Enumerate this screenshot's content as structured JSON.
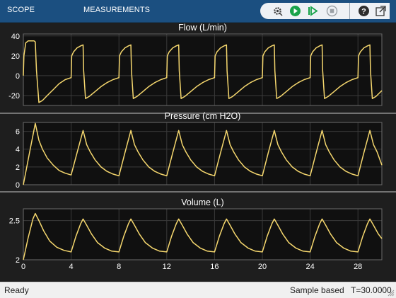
{
  "toolbar": {
    "tabs": [
      {
        "label": "SCOPE"
      },
      {
        "label": "MEASUREMENTS"
      }
    ],
    "icons": [
      "settings-gear-icon",
      "run-icon",
      "step-forward-icon",
      "stop-icon",
      "help-icon",
      "undock-icon"
    ],
    "colors": {
      "bar": "#1b4f80",
      "run": "#18a34a",
      "stop": "#9aa0a6"
    }
  },
  "status": {
    "text": "Ready",
    "mode": "Sample based",
    "time": "T=30.0000"
  },
  "colors": {
    "background": "#1e1e1e",
    "axes": "#101010",
    "grid": "#3a3a3a",
    "axis_text": "#ffffff",
    "trace": "#f5d76e"
  },
  "chart_data": [
    {
      "type": "line",
      "title": "Flow (L/min)",
      "xlim": [
        0,
        30
      ],
      "ylim": [
        -30,
        42
      ],
      "yticks": [
        40,
        20,
        0,
        -20
      ],
      "ytick_labels": [
        "40",
        "20",
        "0",
        "-20"
      ],
      "series": [
        {
          "x": [
            0,
            0.05,
            0.2,
            0.4,
            0.6,
            0.9,
            1.0,
            1.1,
            1.3,
            1.6,
            2.0,
            2.5,
            3.0,
            3.5,
            4.0,
            4.05,
            4.2,
            4.5,
            4.8,
            5.0,
            5.05,
            5.2,
            5.5,
            6.0,
            6.5,
            7.0,
            7.5,
            8.0,
            8.05,
            8.2,
            8.5,
            8.8,
            9.0,
            9.05,
            9.2,
            9.5,
            10.0,
            10.5,
            11.0,
            11.5,
            12.0,
            12.05,
            12.2,
            12.5,
            12.8,
            13.0,
            13.05,
            13.2,
            13.5,
            14.0,
            14.5,
            15.0,
            15.5,
            16.0,
            16.05,
            16.2,
            16.5,
            16.8,
            17.0,
            17.05,
            17.2,
            17.5,
            18.0,
            18.5,
            19.0,
            19.5,
            20.0,
            20.05,
            20.2,
            20.5,
            20.8,
            21.0,
            21.05,
            21.2,
            21.5,
            22.0,
            22.5,
            23.0,
            23.5,
            24.0,
            24.05,
            24.2,
            24.5,
            24.8,
            25.0,
            25.05,
            25.2,
            25.5,
            26.0,
            26.5,
            27.0,
            27.5,
            28.0,
            28.05,
            28.2,
            28.5,
            28.8,
            29.0,
            29.05,
            29.2,
            29.5,
            30.0
          ],
          "y": [
            0,
            20,
            33,
            35,
            35,
            35,
            34,
            5,
            -27,
            -25,
            -20,
            -14,
            -8,
            -4,
            -2,
            20,
            24,
            28,
            30,
            31,
            5,
            -23,
            -21,
            -16,
            -11,
            -7,
            -4,
            -2,
            20,
            24,
            28,
            30,
            31,
            5,
            -23,
            -21,
            -16,
            -11,
            -7,
            -4,
            -2,
            20,
            24,
            28,
            30,
            31,
            5,
            -23,
            -21,
            -16,
            -11,
            -7,
            -4,
            -2,
            20,
            24,
            28,
            30,
            31,
            5,
            -23,
            -21,
            -16,
            -11,
            -7,
            -4,
            -2,
            20,
            24,
            28,
            30,
            31,
            5,
            -23,
            -21,
            -16,
            -11,
            -7,
            -4,
            -2,
            20,
            24,
            28,
            30,
            31,
            5,
            -23,
            -21,
            -16,
            -11,
            -7,
            -4,
            -2,
            20,
            24,
            28,
            30,
            31,
            5,
            -23,
            -21,
            -15
          ]
        }
      ]
    },
    {
      "type": "line",
      "title": "Pressure (cm H2O)",
      "xlim": [
        0,
        30
      ],
      "ylim": [
        0,
        7
      ],
      "yticks": [
        6,
        4,
        2,
        0
      ],
      "ytick_labels": [
        "6",
        "4",
        "2",
        "0"
      ],
      "series": [
        {
          "x": [
            0,
            0.5,
            1.0,
            1.3,
            1.6,
            2.0,
            2.5,
            3.0,
            3.5,
            4.0,
            4.5,
            5.0,
            5.3,
            5.6,
            6.0,
            6.5,
            7.0,
            7.5,
            8.0,
            8.5,
            9.0,
            9.3,
            9.6,
            10.0,
            10.5,
            11.0,
            11.5,
            12.0,
            12.5,
            13.0,
            13.3,
            13.6,
            14.0,
            14.5,
            15.0,
            15.5,
            16.0,
            16.5,
            17.0,
            17.3,
            17.6,
            18.0,
            18.5,
            19.0,
            19.5,
            20.0,
            20.5,
            21.0,
            21.3,
            21.6,
            22.0,
            22.5,
            23.0,
            23.5,
            24.0,
            24.5,
            25.0,
            25.3,
            25.6,
            26.0,
            26.5,
            27.0,
            27.5,
            28.0,
            28.5,
            29.0,
            29.3,
            29.6,
            30.0
          ],
          "y": [
            0,
            3.5,
            6.9,
            5.0,
            4.0,
            3.0,
            2.2,
            1.6,
            1.3,
            1.1,
            3.6,
            6.1,
            4.5,
            3.7,
            2.8,
            2.0,
            1.5,
            1.2,
            1.0,
            3.6,
            6.1,
            4.5,
            3.7,
            2.8,
            2.0,
            1.5,
            1.2,
            1.0,
            3.6,
            6.1,
            4.5,
            3.7,
            2.8,
            2.0,
            1.5,
            1.2,
            1.0,
            3.6,
            6.1,
            4.5,
            3.7,
            2.8,
            2.0,
            1.5,
            1.2,
            1.0,
            3.6,
            6.1,
            4.5,
            3.7,
            2.8,
            2.0,
            1.5,
            1.2,
            1.0,
            3.6,
            6.1,
            4.5,
            3.7,
            2.8,
            2.0,
            1.5,
            1.2,
            1.0,
            3.6,
            6.1,
            4.5,
            3.7,
            2.2
          ]
        }
      ]
    },
    {
      "type": "line",
      "title": "Volume (L)",
      "xlim": [
        0,
        30
      ],
      "ylim": [
        2,
        2.65
      ],
      "yticks": [
        2.5,
        2
      ],
      "ytick_labels": [
        "2.5",
        "2"
      ],
      "xticks": [
        0,
        4,
        8,
        12,
        16,
        20,
        24,
        28
      ],
      "xtick_labels": [
        "0",
        "4",
        "8",
        "12",
        "16",
        "20",
        "24",
        "28"
      ],
      "series": [
        {
          "x": [
            0,
            0.4,
            0.8,
            1.0,
            1.3,
            1.7,
            2.2,
            2.8,
            3.4,
            4.0,
            4.4,
            4.8,
            5.0,
            5.3,
            5.7,
            6.2,
            6.8,
            7.4,
            8.0,
            8.4,
            8.8,
            9.0,
            9.3,
            9.7,
            10.2,
            10.8,
            11.4,
            12.0,
            12.4,
            12.8,
            13.0,
            13.3,
            13.7,
            14.2,
            14.8,
            15.4,
            16.0,
            16.4,
            16.8,
            17.0,
            17.3,
            17.7,
            18.2,
            18.8,
            19.4,
            20.0,
            20.4,
            20.8,
            21.0,
            21.3,
            21.7,
            22.2,
            22.8,
            23.4,
            24.0,
            24.4,
            24.8,
            25.0,
            25.3,
            25.7,
            26.2,
            26.8,
            27.4,
            28.0,
            28.4,
            28.8,
            29.0,
            29.3,
            29.7,
            30.0
          ],
          "y": [
            2.0,
            2.28,
            2.52,
            2.59,
            2.5,
            2.37,
            2.24,
            2.16,
            2.12,
            2.1,
            2.3,
            2.46,
            2.52,
            2.44,
            2.33,
            2.22,
            2.15,
            2.11,
            2.1,
            2.3,
            2.46,
            2.52,
            2.44,
            2.33,
            2.22,
            2.15,
            2.11,
            2.1,
            2.3,
            2.46,
            2.52,
            2.44,
            2.33,
            2.22,
            2.15,
            2.11,
            2.1,
            2.3,
            2.46,
            2.52,
            2.44,
            2.33,
            2.22,
            2.15,
            2.11,
            2.1,
            2.3,
            2.46,
            2.52,
            2.44,
            2.33,
            2.22,
            2.15,
            2.11,
            2.1,
            2.3,
            2.46,
            2.52,
            2.44,
            2.33,
            2.22,
            2.15,
            2.11,
            2.1,
            2.3,
            2.46,
            2.52,
            2.44,
            2.33,
            2.27
          ]
        }
      ]
    }
  ]
}
